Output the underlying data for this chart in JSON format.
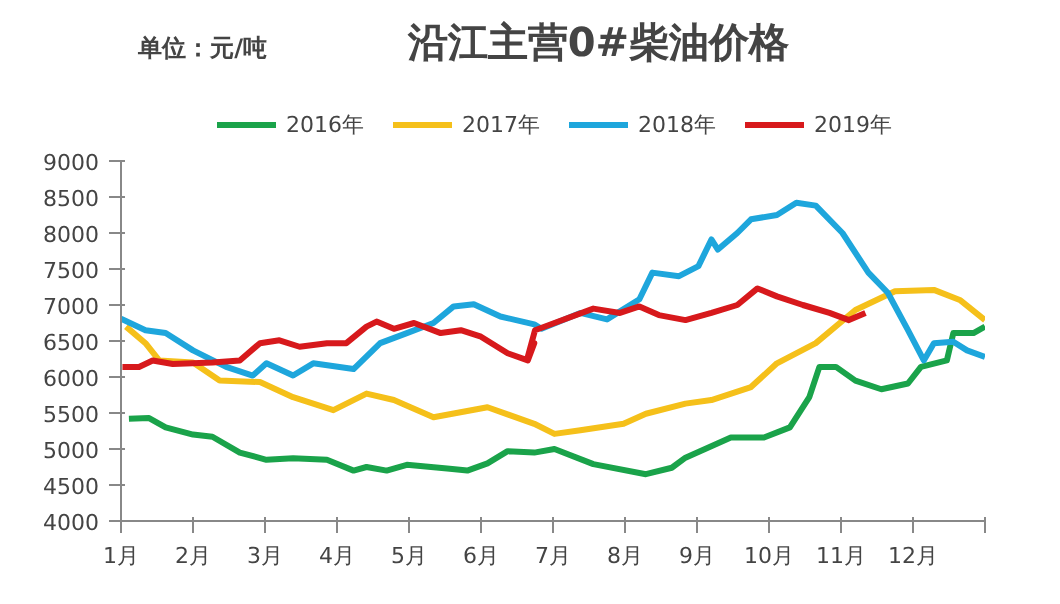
{
  "chart_data": {
    "type": "line",
    "title": "沿江主营0#柴油价格",
    "annotations": [
      "单位：元/吨"
    ],
    "xlim": [
      1,
      13
    ],
    "xticks": [
      {
        "value": 1,
        "label": "1月"
      },
      {
        "value": 2,
        "label": "2月"
      },
      {
        "value": 3,
        "label": "3月"
      },
      {
        "value": 4,
        "label": "4月"
      },
      {
        "value": 5,
        "label": "5月"
      },
      {
        "value": 6,
        "label": "6月"
      },
      {
        "value": 7,
        "label": "7月"
      },
      {
        "value": 8,
        "label": "8月"
      },
      {
        "value": 9,
        "label": "9月"
      },
      {
        "value": 10,
        "label": "10月"
      },
      {
        "value": 11,
        "label": "11月"
      },
      {
        "value": 12,
        "label": "12月"
      },
      {
        "value": 13,
        "label": null
      }
    ],
    "ylim": [
      4000,
      9000
    ],
    "yticks": [
      4000,
      4500,
      5000,
      5500,
      6000,
      6500,
      7000,
      7500,
      8000,
      8500,
      9000
    ],
    "grid": false,
    "legend": "top",
    "marker": "none",
    "line_style": "solid",
    "series": [
      {
        "name": "2016年",
        "color": "#1aa34a",
        "x": [
          1.11,
          1.39,
          1.62,
          2.0,
          2.27,
          2.65,
          3.02,
          3.39,
          3.86,
          4.23,
          4.41,
          4.69,
          4.97,
          5.53,
          5.81,
          6.09,
          6.37,
          6.74,
          7.02,
          7.56,
          8.29,
          8.65,
          8.84,
          9.47,
          9.93,
          10.29,
          10.56,
          10.7,
          10.93,
          11.2,
          11.56,
          11.93,
          12.11,
          12.47,
          12.56,
          12.84,
          13.0
        ],
        "values": [
          5420,
          5430,
          5300,
          5200,
          5170,
          4950,
          4850,
          4870,
          4850,
          4700,
          4750,
          4700,
          4780,
          4730,
          4700,
          4800,
          4970,
          4950,
          5000,
          4790,
          4650,
          4740,
          4880,
          5160,
          5160,
          5300,
          5720,
          6140,
          6140,
          5950,
          5830,
          5910,
          6140,
          6230,
          6610,
          6610,
          6700
        ]
      },
      {
        "name": "2017年",
        "color": "#f5c01a",
        "x": [
          1.07,
          1.34,
          1.53,
          2.0,
          2.37,
          2.93,
          3.39,
          3.95,
          4.41,
          4.79,
          5.34,
          6.09,
          6.74,
          7.02,
          7.38,
          7.98,
          8.29,
          8.84,
          9.2,
          9.75,
          10.11,
          10.65,
          11.2,
          11.75,
          12.29,
          12.65,
          13.0
        ],
        "values": [
          6700,
          6470,
          6230,
          6200,
          5950,
          5930,
          5720,
          5540,
          5770,
          5680,
          5440,
          5580,
          5350,
          5210,
          5260,
          5350,
          5490,
          5630,
          5680,
          5860,
          6190,
          6470,
          6930,
          7190,
          7210,
          7070,
          6790
        ]
      },
      {
        "name": "2018年",
        "color": "#1ea6dc",
        "x": [
          1.0,
          1.34,
          1.62,
          2.0,
          2.46,
          2.83,
          3.02,
          3.39,
          3.67,
          4.23,
          4.6,
          4.97,
          5.34,
          5.62,
          5.9,
          6.27,
          6.74,
          6.84,
          7.38,
          7.75,
          8.2,
          8.38,
          8.75,
          9.02,
          9.2,
          9.29,
          9.56,
          9.75,
          10.11,
          10.38,
          10.65,
          11.02,
          11.38,
          11.65,
          11.93,
          12.15,
          12.29,
          12.56,
          12.75,
          13.0
        ],
        "values": [
          6810,
          6650,
          6610,
          6370,
          6140,
          6020,
          6190,
          6020,
          6190,
          6110,
          6470,
          6610,
          6750,
          6980,
          7010,
          6840,
          6730,
          6670,
          6890,
          6800,
          7080,
          7450,
          7400,
          7540,
          7910,
          7770,
          8000,
          8190,
          8250,
          8420,
          8380,
          8000,
          7450,
          7170,
          6650,
          6230,
          6470,
          6490,
          6370,
          6280
        ]
      },
      {
        "name": "2019年",
        "color": "#d7191c",
        "x": [
          1.02,
          1.25,
          1.44,
          1.72,
          2.27,
          2.65,
          2.93,
          3.2,
          3.48,
          3.86,
          4.13,
          4.41,
          4.55,
          4.79,
          5.07,
          5.44,
          5.72,
          6.0,
          6.37,
          6.65,
          6.74,
          6.65,
          6.75,
          7.02,
          7.56,
          7.93,
          8.2,
          8.47,
          8.84,
          9.2,
          9.56,
          9.84,
          10.11,
          10.47,
          10.84,
          11.11,
          11.34
        ],
        "values": [
          6140,
          6140,
          6230,
          6180,
          6200,
          6230,
          6470,
          6510,
          6420,
          6470,
          6470,
          6700,
          6770,
          6670,
          6750,
          6610,
          6650,
          6560,
          6330,
          6230,
          6470,
          6280,
          6650,
          6750,
          6950,
          6890,
          6980,
          6860,
          6790,
          6890,
          7000,
          7230,
          7120,
          7000,
          6890,
          6790,
          6890
        ]
      }
    ]
  }
}
